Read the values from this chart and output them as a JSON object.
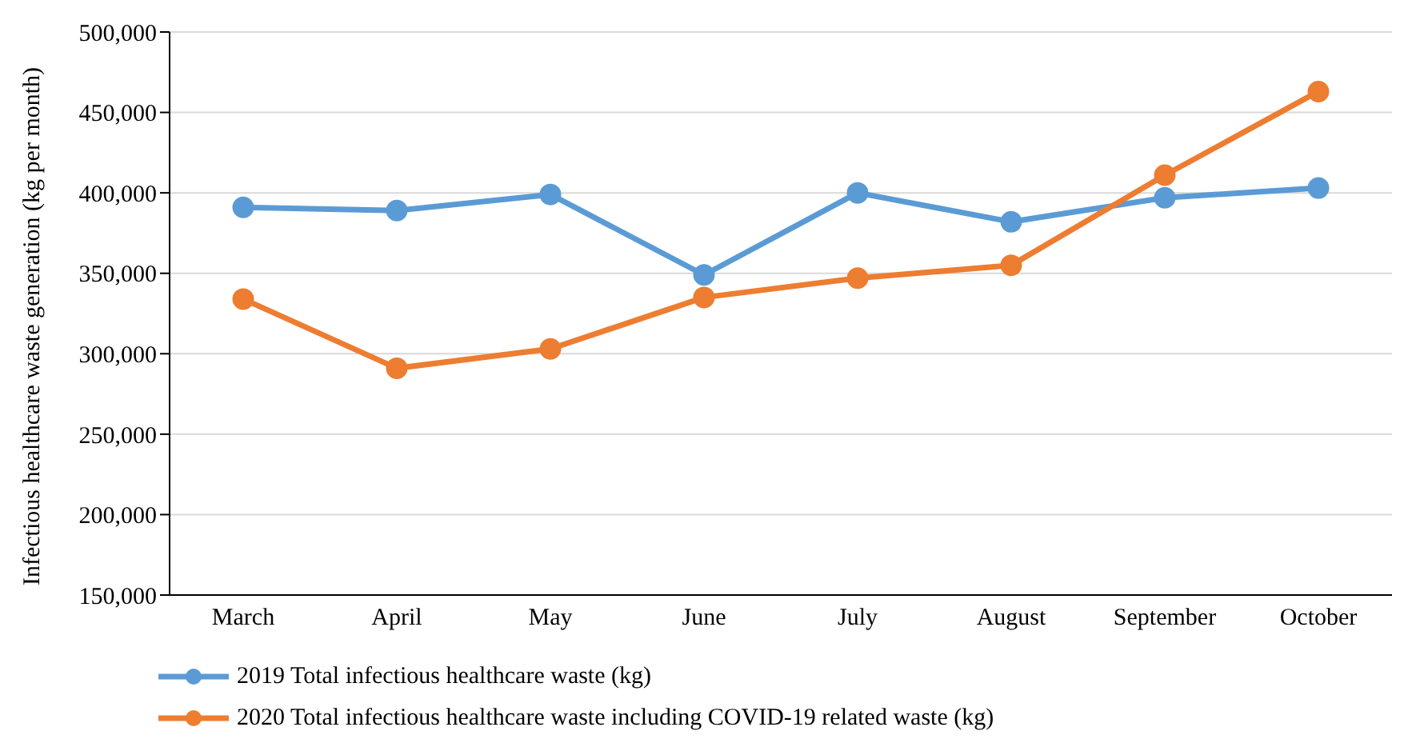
{
  "chart_data": {
    "type": "line",
    "ylabel": "Infectious healthcare waste generation (kg per month)",
    "categories": [
      "March",
      "April",
      "May",
      "June",
      "July",
      "August",
      "September",
      "October"
    ],
    "series": [
      {
        "name": "2019 Total infectious healthcare waste (kg)",
        "color": "#5b9bd5",
        "values": [
          391000,
          389000,
          399000,
          349000,
          400000,
          382000,
          397000,
          403000
        ]
      },
      {
        "name": "2020 Total infectious healthcare waste including COVID-19 related waste (kg)",
        "color": "#ed7d31",
        "values": [
          334000,
          291000,
          303000,
          335000,
          347000,
          355000,
          411000,
          463000
        ]
      }
    ],
    "ylim": [
      150000,
      500000
    ],
    "yticks": [
      {
        "value": 150000,
        "label": "150,000"
      },
      {
        "value": 200000,
        "label": "200,000"
      },
      {
        "value": 250000,
        "label": "250,000"
      },
      {
        "value": 300000,
        "label": "300,000"
      },
      {
        "value": 350000,
        "label": "350,000"
      },
      {
        "value": 400000,
        "label": "400,000"
      },
      {
        "value": 450000,
        "label": "450,000"
      },
      {
        "value": 500000,
        "label": "500,000"
      }
    ],
    "grid": "y",
    "legend": "bottom",
    "marker": "circle",
    "line_style": "solid"
  }
}
